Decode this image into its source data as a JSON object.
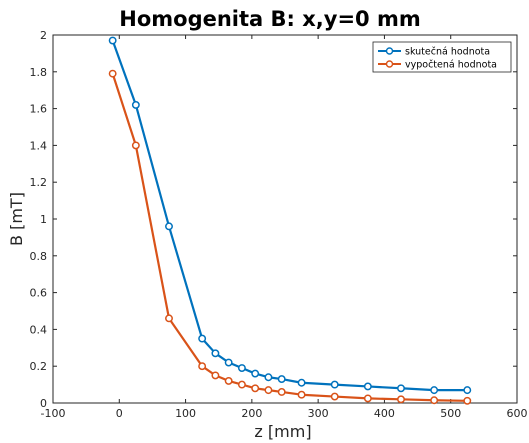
{
  "chart_data": {
    "type": "line",
    "title": "Homogenita B: x,y=0 mm",
    "xlabel": "z [mm]",
    "ylabel": "B [mT]",
    "xlim": [
      -100,
      600
    ],
    "ylim": [
      0,
      2
    ],
    "xticks": [
      -100,
      0,
      100,
      200,
      300,
      400,
      500,
      600
    ],
    "yticks": [
      0,
      0.2,
      0.4,
      0.6,
      0.8,
      1,
      1.2,
      1.4,
      1.6,
      1.8,
      2
    ],
    "grid": true,
    "legend_position": "top-right",
    "series": [
      {
        "name": "skutečná hodnota",
        "color": "#0072BD",
        "x": [
          -10,
          25,
          75,
          125,
          145,
          165,
          185,
          205,
          225,
          245,
          275,
          325,
          375,
          425,
          475,
          525
        ],
        "y": [
          1.97,
          1.62,
          0.96,
          0.35,
          0.27,
          0.22,
          0.19,
          0.16,
          0.14,
          0.13,
          0.11,
          0.1,
          0.09,
          0.08,
          0.07,
          0.07
        ]
      },
      {
        "name": "vypočtená hodnota",
        "color": "#D95319",
        "x": [
          -10,
          25,
          75,
          125,
          145,
          165,
          185,
          205,
          225,
          245,
          275,
          325,
          375,
          425,
          475,
          525
        ],
        "y": [
          1.79,
          1.4,
          0.46,
          0.2,
          0.15,
          0.12,
          0.1,
          0.08,
          0.07,
          0.06,
          0.045,
          0.035,
          0.025,
          0.02,
          0.015,
          0.012
        ]
      }
    ]
  }
}
